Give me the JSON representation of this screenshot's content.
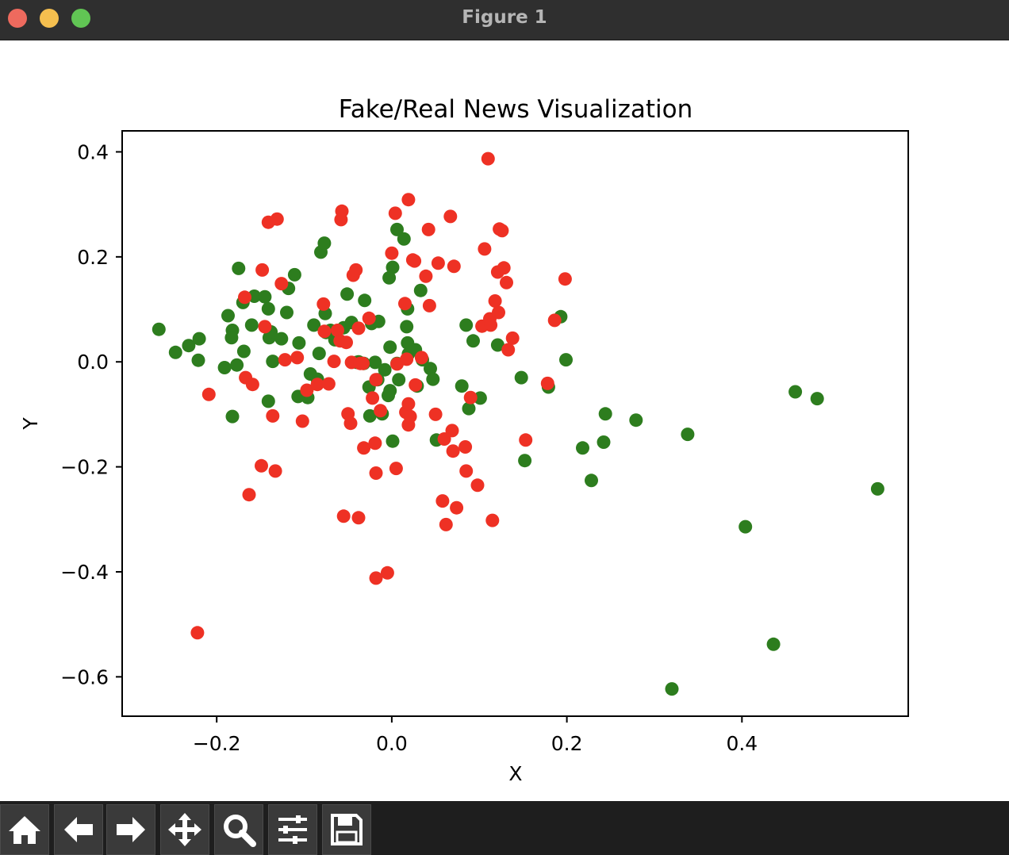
{
  "window": {
    "title": "Figure 1"
  },
  "toolbar": {
    "icons": [
      "home-icon",
      "back-arrow-icon",
      "forward-arrow-icon",
      "pan-icon",
      "zoom-icon",
      "configure-subplots-icon",
      "save-icon"
    ]
  },
  "colors": {
    "fake": "#ee3124",
    "real": "#2d7d1e"
  },
  "chart_data": {
    "type": "scatter",
    "title": "Fake/Real News Visualization",
    "xlabel": "X",
    "ylabel": "Y",
    "xlim": [
      -0.308,
      0.59
    ],
    "ylim": [
      -0.675,
      0.44
    ],
    "xticks": [
      -0.2,
      0.0,
      0.2,
      0.4
    ],
    "xtick_labels": [
      "−0.2",
      "0.0",
      "0.2",
      "0.4"
    ],
    "yticks": [
      0.4,
      0.2,
      0.0,
      -0.2,
      -0.4,
      -0.6
    ],
    "ytick_labels": [
      "0.4",
      "0.2",
      "0.0",
      "−0.2",
      "−0.4",
      "−0.6"
    ],
    "grid": false,
    "series": [
      {
        "color": "#2d7d1e",
        "points": [
          [
            -0.266,
            0.062
          ],
          [
            -0.247,
            0.018
          ],
          [
            -0.232,
            0.031
          ],
          [
            -0.22,
            0.044
          ],
          [
            -0.221,
            0.003
          ],
          [
            -0.191,
            -0.011
          ],
          [
            -0.187,
            0.088
          ],
          [
            -0.182,
            0.06
          ],
          [
            -0.183,
            0.046
          ],
          [
            -0.177,
            -0.006
          ],
          [
            -0.182,
            -0.104
          ],
          [
            -0.175,
            0.178
          ],
          [
            -0.169,
            0.02
          ],
          [
            -0.17,
            0.113
          ],
          [
            -0.157,
            0.125
          ],
          [
            -0.145,
            0.124
          ],
          [
            -0.16,
            0.07
          ],
          [
            -0.141,
            0.101
          ],
          [
            -0.14,
            0.046
          ],
          [
            -0.138,
            0.057
          ],
          [
            -0.136,
            0.001
          ],
          [
            -0.141,
            -0.075
          ],
          [
            -0.126,
            0.044
          ],
          [
            -0.12,
            0.094
          ],
          [
            -0.118,
            0.14
          ],
          [
            -0.111,
            0.166
          ],
          [
            -0.106,
            0.036
          ],
          [
            -0.107,
            -0.066
          ],
          [
            -0.096,
            -0.068
          ],
          [
            -0.093,
            -0.023
          ],
          [
            -0.089,
            0.07
          ],
          [
            -0.083,
            0.016
          ],
          [
            -0.085,
            -0.033
          ],
          [
            -0.081,
            0.209
          ],
          [
            -0.077,
            0.226
          ],
          [
            -0.076,
            0.092
          ],
          [
            -0.075,
            0.056
          ],
          [
            -0.07,
            0.06
          ],
          [
            -0.065,
            0.042
          ],
          [
            -0.055,
            0.065
          ],
          [
            -0.051,
            0.129
          ],
          [
            -0.046,
            0.075
          ],
          [
            -0.04,
            -0.001
          ],
          [
            -0.038,
            0.0
          ],
          [
            -0.031,
            0.117
          ],
          [
            -0.032,
            -0.003
          ],
          [
            -0.026,
            -0.048
          ],
          [
            -0.025,
            -0.103
          ],
          [
            -0.023,
            0.073
          ],
          [
            -0.015,
            0.077
          ],
          [
            -0.019,
            -0.001
          ],
          [
            -0.016,
            -0.034
          ],
          [
            -0.011,
            -0.099
          ],
          [
            -0.008,
            -0.015
          ],
          [
            -0.004,
            -0.064
          ],
          [
            -0.003,
            0.16
          ],
          [
            -0.002,
            0.028
          ],
          [
            -0.002,
            -0.055
          ],
          [
            0.001,
            0.18
          ],
          [
            0.001,
            -0.151
          ],
          [
            0.006,
            0.252
          ],
          [
            0.006,
            -0.003
          ],
          [
            0.008,
            -0.034
          ],
          [
            0.014,
            0.234
          ],
          [
            0.017,
            0.067
          ],
          [
            0.018,
            0.101
          ],
          [
            0.018,
            0.036
          ],
          [
            0.019,
            0.015
          ],
          [
            0.027,
            0.023
          ],
          [
            0.029,
            -0.046
          ],
          [
            0.033,
            0.136
          ],
          [
            0.035,
            0.004
          ],
          [
            0.044,
            -0.013
          ],
          [
            0.047,
            -0.033
          ],
          [
            0.051,
            -0.149
          ],
          [
            0.08,
            -0.046
          ],
          [
            0.085,
            0.07
          ],
          [
            0.088,
            -0.089
          ],
          [
            0.093,
            0.04
          ],
          [
            0.101,
            -0.069
          ],
          [
            0.121,
            0.032
          ],
          [
            0.148,
            -0.03
          ],
          [
            0.152,
            -0.188
          ],
          [
            0.179,
            -0.048
          ],
          [
            0.193,
            0.086
          ],
          [
            0.199,
            0.004
          ],
          [
            0.218,
            -0.164
          ],
          [
            0.228,
            -0.226
          ],
          [
            0.242,
            -0.153
          ],
          [
            0.244,
            -0.099
          ],
          [
            0.279,
            -0.111
          ],
          [
            0.338,
            -0.138
          ],
          [
            0.404,
            -0.314
          ],
          [
            0.436,
            -0.538
          ],
          [
            0.461,
            -0.057
          ],
          [
            0.486,
            -0.07
          ],
          [
            0.32,
            -0.623
          ],
          [
            0.555,
            -0.242
          ]
        ]
      },
      {
        "color": "#ee3124",
        "points": [
          [
            -0.222,
            -0.516
          ],
          [
            -0.209,
            -0.062
          ],
          [
            -0.168,
            0.123
          ],
          [
            -0.167,
            -0.03
          ],
          [
            -0.163,
            -0.253
          ],
          [
            -0.159,
            -0.043
          ],
          [
            -0.149,
            -0.198
          ],
          [
            -0.148,
            0.175
          ],
          [
            -0.145,
            0.067
          ],
          [
            -0.141,
            0.266
          ],
          [
            -0.136,
            -0.103
          ],
          [
            -0.131,
            0.272
          ],
          [
            -0.133,
            -0.208
          ],
          [
            -0.126,
            0.149
          ],
          [
            -0.122,
            0.004
          ],
          [
            -0.108,
            0.008
          ],
          [
            -0.102,
            -0.113
          ],
          [
            -0.097,
            -0.054
          ],
          [
            -0.085,
            -0.043
          ],
          [
            -0.078,
            0.11
          ],
          [
            -0.077,
            0.058
          ],
          [
            -0.072,
            -0.042
          ],
          [
            -0.066,
            0.001
          ],
          [
            -0.062,
            0.06
          ],
          [
            -0.059,
            0.04
          ],
          [
            -0.057,
            0.287
          ],
          [
            -0.058,
            0.271
          ],
          [
            -0.055,
            -0.294
          ],
          [
            -0.052,
            0.037
          ],
          [
            -0.046,
            -0.001
          ],
          [
            -0.05,
            -0.099
          ],
          [
            -0.047,
            -0.117
          ],
          [
            -0.044,
            0.165
          ],
          [
            -0.041,
            0.175
          ],
          [
            -0.036,
            -0.003
          ],
          [
            -0.033,
            -0.003
          ],
          [
            -0.038,
            -0.297
          ],
          [
            -0.038,
            0.064
          ],
          [
            -0.032,
            -0.164
          ],
          [
            -0.026,
            0.083
          ],
          [
            -0.022,
            -0.069
          ],
          [
            -0.018,
            -0.034
          ],
          [
            -0.019,
            -0.155
          ],
          [
            -0.018,
            -0.212
          ],
          [
            -0.018,
            -0.412
          ],
          [
            -0.013,
            -0.093
          ],
          [
            -0.005,
            -0.402
          ],
          [
            0.0,
            0.207
          ],
          [
            0.004,
            0.283
          ],
          [
            0.005,
            -0.203
          ],
          [
            0.006,
            -0.004
          ],
          [
            0.015,
            0.111
          ],
          [
            0.017,
            0.005
          ],
          [
            0.016,
            -0.096
          ],
          [
            0.019,
            -0.08
          ],
          [
            0.019,
            -0.12
          ],
          [
            0.019,
            0.309
          ],
          [
            0.021,
            -0.104
          ],
          [
            0.024,
            0.194
          ],
          [
            0.026,
            0.192
          ],
          [
            0.027,
            -0.044
          ],
          [
            0.034,
            0.008
          ],
          [
            0.039,
            0.163
          ],
          [
            0.043,
            0.107
          ],
          [
            0.042,
            0.252
          ],
          [
            0.05,
            -0.1
          ],
          [
            0.053,
            0.188
          ],
          [
            0.058,
            -0.265
          ],
          [
            0.06,
            -0.147
          ],
          [
            0.062,
            -0.31
          ],
          [
            0.067,
            0.277
          ],
          [
            0.069,
            -0.131
          ],
          [
            0.071,
            0.182
          ],
          [
            0.07,
            -0.17
          ],
          [
            0.074,
            -0.278
          ],
          [
            0.085,
            -0.208
          ],
          [
            0.084,
            -0.162
          ],
          [
            0.09,
            -0.068
          ],
          [
            0.098,
            -0.235
          ],
          [
            0.103,
            0.068
          ],
          [
            0.106,
            0.215
          ],
          [
            0.11,
            0.387
          ],
          [
            0.112,
            0.082
          ],
          [
            0.113,
            0.07
          ],
          [
            0.115,
            -0.302
          ],
          [
            0.118,
            0.116
          ],
          [
            0.121,
            0.171
          ],
          [
            0.122,
            0.094
          ],
          [
            0.123,
            0.253
          ],
          [
            0.126,
            0.25
          ],
          [
            0.128,
            0.179
          ],
          [
            0.131,
            0.151
          ],
          [
            0.133,
            0.023
          ],
          [
            0.138,
            0.045
          ],
          [
            0.153,
            -0.149
          ],
          [
            0.178,
            -0.041
          ],
          [
            0.186,
            0.079
          ],
          [
            0.198,
            0.158
          ]
        ]
      }
    ]
  }
}
